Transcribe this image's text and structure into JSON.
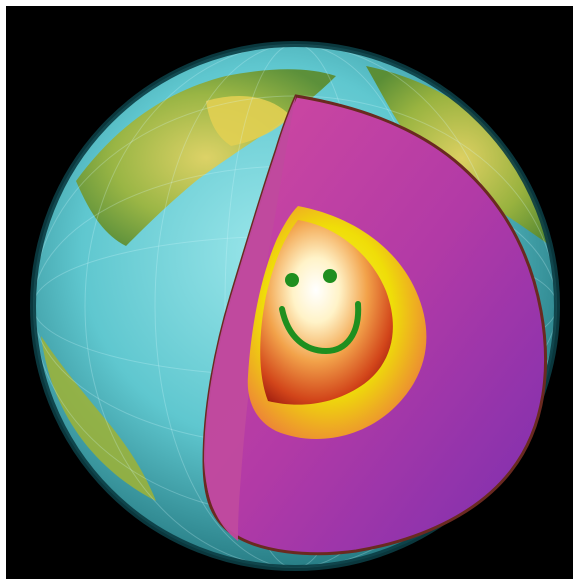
{
  "image": {
    "subject": "cutaway-earth-with-smiling-core",
    "colors": {
      "background": "#000000",
      "frame": "#ffffff",
      "ocean": "#5fc7cf",
      "land": "#c9a83b",
      "mantle": "#b23aa6",
      "outer_core": "#f0f000",
      "inner_core": "#e35a1a",
      "smile": "#1f8f1f"
    }
  }
}
